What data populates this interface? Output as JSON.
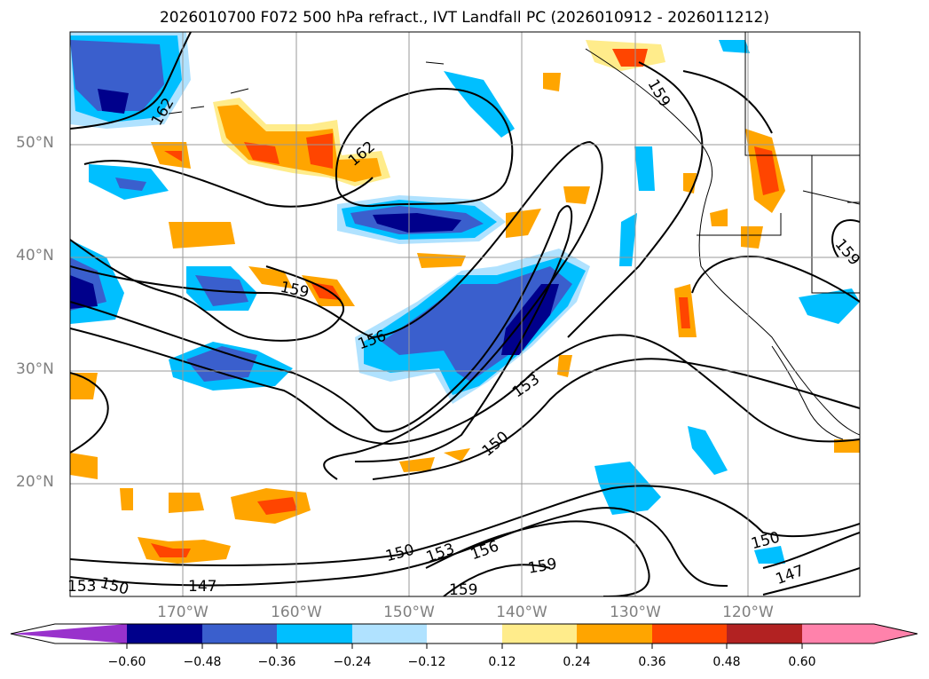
{
  "title": "2026010700 F072 500 hPa refract., IVT Landfall PC (2026010912 - 2026011212)",
  "lat_labels": [
    "50°N",
    "40°N",
    "30°N",
    "20°N"
  ],
  "lon_labels": [
    "170°W",
    "160°W",
    "150°W",
    "140°W",
    "130°W",
    "120°W"
  ],
  "contour_labels": [
    "162",
    "162",
    "159",
    "159",
    "159",
    "156",
    "153",
    "150",
    "150",
    "153",
    "156",
    "159",
    "159",
    "147",
    "153",
    "150",
    "150",
    "147"
  ],
  "colorbar": {
    "ticks": [
      "−0.60",
      "−0.48",
      "−0.36",
      "−0.24",
      "−0.12",
      "0.12",
      "0.24",
      "0.36",
      "0.48",
      "0.60"
    ],
    "colors": [
      "#9932CC",
      "#00008B",
      "#3A5FCD",
      "#00BFFF",
      "#B0E2FF",
      "#FFFFFF",
      "#FFEC8B",
      "#FFA500",
      "#FF4500",
      "#B22222",
      "#FF82AB"
    ]
  }
}
